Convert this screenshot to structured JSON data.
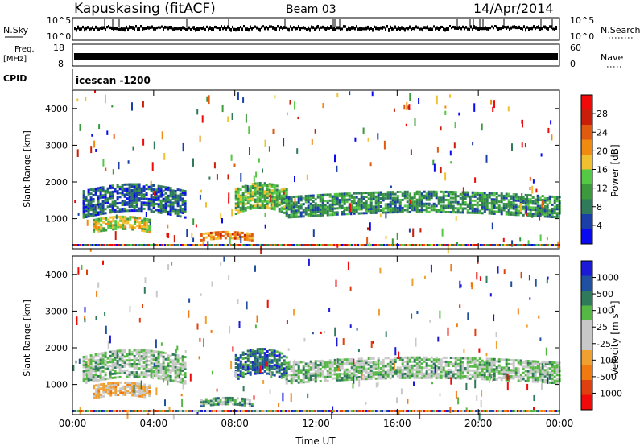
{
  "header": {
    "station": "Kapuskasing (fitACF)",
    "beam": "Beam 03",
    "date": "14/Apr/2014"
  },
  "strip_panels": {
    "nsky_label": "N.Sky",
    "nsky_ticks": [
      "10^5",
      "10^0"
    ],
    "nsearch_label": "N.Search",
    "nsearch_ticks": [
      "10^5",
      "10^0"
    ],
    "freq_label": "Freq.",
    "freq_unit": "[MHz]",
    "freq_ticks": [
      "18",
      "8"
    ],
    "nave_label": "Nave",
    "nave_ticks": [
      "60",
      "0"
    ],
    "cpid_label": "CPID",
    "cpid_text": "icescan -1200"
  },
  "colors": {
    "power": [
      "#0a0af0",
      "#1a3fa8",
      "#2e7a5a",
      "#3c9a3c",
      "#55c845",
      "#f0c030",
      "#f08a10",
      "#e05a10",
      "#c81e0a",
      "#f00a0a"
    ],
    "velocity": [
      "#1a1ad8",
      "#2050a0",
      "#2e7a5a",
      "#55b845",
      "#c8c8c8",
      "#c8c8c8",
      "#f0a030",
      "#f07a10",
      "#e04010",
      "#f00a0a"
    ]
  },
  "chart_data": [
    {
      "type": "heatmap",
      "title": "Power",
      "ylabel": "Slant Range [km]",
      "xlabel": "",
      "yticks": [
        "4000",
        "3000",
        "2000",
        "1000"
      ],
      "ylim": [
        180,
        4500
      ],
      "colorbar_label": "Power [dB]",
      "colorbar_ticks": [
        "28",
        "24",
        "20",
        "16",
        "12",
        "8",
        "4"
      ],
      "regions": [
        {
          "t0": 0.5,
          "t1": 5.5,
          "r0": 1000,
          "r1": 1750,
          "level": 2
        },
        {
          "t0": 1.0,
          "t1": 3.8,
          "r0": 600,
          "r1": 950,
          "level": 5
        },
        {
          "t0": 6.3,
          "t1": 8.8,
          "r0": 380,
          "r1": 600,
          "level": 7
        },
        {
          "t0": 8.0,
          "t1": 10.5,
          "r0": 1100,
          "r1": 1800,
          "level": 4
        },
        {
          "t0": 10.5,
          "t1": 24.0,
          "r0": 1000,
          "r1": 1600,
          "level": 3
        }
      ]
    },
    {
      "type": "heatmap",
      "title": "Velocity",
      "ylabel": "Slant Range [km]",
      "xlabel": "Time UT",
      "xticks": [
        "00:00",
        "04:00",
        "08:00",
        "12:00",
        "16:00",
        "20:00",
        "00:00"
      ],
      "yticks": [
        "4000",
        "3000",
        "2000",
        "1000"
      ],
      "ylim": [
        180,
        4500
      ],
      "colorbar_label": "Velocity [m s⁻¹]",
      "colorbar_ticks": [
        "1000",
        "500",
        "100",
        "25",
        "-25",
        "-100",
        "-500",
        "-1000"
      ],
      "regions": [
        {
          "t0": 0.5,
          "t1": 5.5,
          "r0": 1000,
          "r1": 1750,
          "level": 4
        },
        {
          "t0": 1.0,
          "t1": 3.8,
          "r0": 600,
          "r1": 950,
          "level": 6
        },
        {
          "t0": 6.3,
          "t1": 8.8,
          "r0": 380,
          "r1": 600,
          "level": 3
        },
        {
          "t0": 8.0,
          "t1": 10.5,
          "r0": 1100,
          "r1": 1800,
          "level": 2
        },
        {
          "t0": 10.5,
          "t1": 24.0,
          "r0": 1000,
          "r1": 1600,
          "level": 4
        }
      ]
    }
  ]
}
